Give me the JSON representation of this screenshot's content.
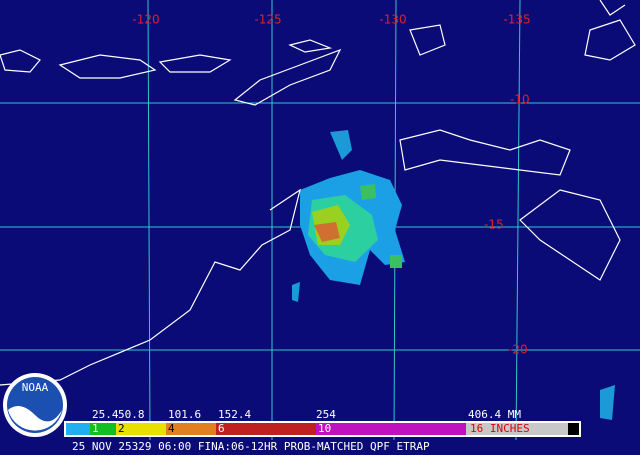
{
  "map": {
    "longitude_labels": [
      "-120",
      "-125",
      "-130",
      "-135"
    ],
    "latitude_labels": [
      "-10",
      "-15",
      "-20"
    ],
    "legend": {
      "mm_labels": [
        "25.4",
        "50.8",
        "101.6",
        "152.4",
        "254",
        "406.4 MM"
      ],
      "inch_labels": [
        "1",
        "2",
        "4",
        "6",
        "10",
        "16 INCHES"
      ]
    },
    "caption": "25 NOV 25329 06:00 FINA:06-12HR PROB-MATCHED QPF ETRAP",
    "logo": "NOAA"
  }
}
